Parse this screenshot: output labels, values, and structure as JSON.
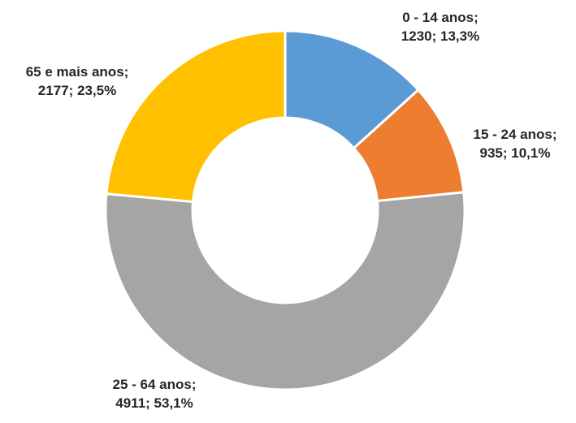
{
  "chart_data": {
    "type": "pie",
    "variant": "donut",
    "title": "",
    "categories": [
      "0 - 14 anos",
      "15 - 24 anos",
      "25 - 64 anos",
      "65 e mais anos"
    ],
    "values": [
      1230,
      935,
      4911,
      2177
    ],
    "percent_labels": [
      "13,3%",
      "10,1%",
      "53,1%",
      "23,5%"
    ],
    "colors": [
      "#5B9BD5",
      "#ED7D31",
      "#A5A5A5",
      "#FFC000"
    ],
    "labels": [
      {
        "line1": "0 - 14 anos;",
        "line2": "1230; 13,3%"
      },
      {
        "line1": "15 - 24 anos;",
        "line2": "935; 10,1%"
      },
      {
        "line1": "25 - 64 anos;",
        "line2": "4911; 53,1%"
      },
      {
        "line1": "65 e mais anos;",
        "line2": "2177; 23,5%"
      }
    ],
    "legend": "none",
    "start": "12 o'clock, clockwise"
  }
}
